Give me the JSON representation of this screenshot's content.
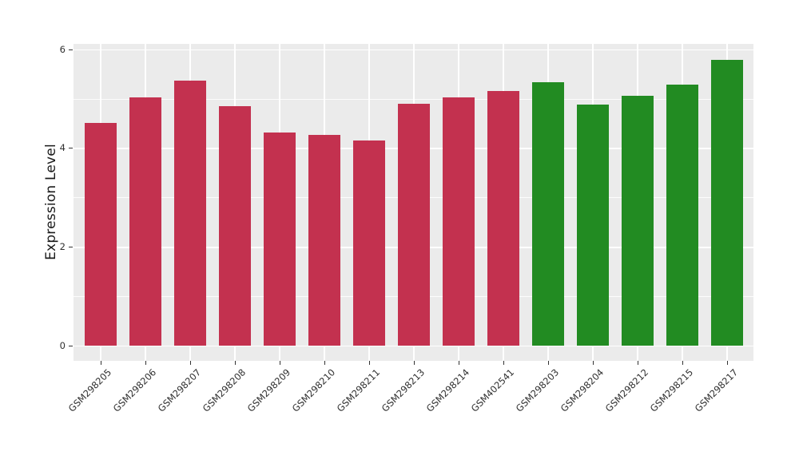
{
  "chart_data": {
    "type": "bar",
    "title": "",
    "xlabel": "",
    "ylabel": "Expression Level",
    "ylim": [
      0,
      6.1
    ],
    "yticks": [
      0,
      2,
      4,
      6
    ],
    "yticks_minor": [
      1,
      3,
      5
    ],
    "grid": "white major and minor horizontal lines, white vertical lines at bar centers, on gray panel",
    "legend_position": "none",
    "categories": [
      "GSM298205",
      "GSM298206",
      "GSM298207",
      "GSM298208",
      "GSM298209",
      "GSM298210",
      "GSM298211",
      "GSM298213",
      "GSM298214",
      "GSM402541",
      "GSM298203",
      "GSM298204",
      "GSM298212",
      "GSM298215",
      "GSM298217"
    ],
    "series": [
      {
        "name": "group-red",
        "color": "#C3314F",
        "indices": [
          0,
          1,
          2,
          3,
          4,
          5,
          6,
          7,
          8,
          9
        ]
      },
      {
        "name": "group-green",
        "color": "#228B22",
        "indices": [
          10,
          11,
          12,
          13,
          14
        ]
      }
    ],
    "values": [
      4.5,
      5.02,
      5.36,
      4.85,
      4.31,
      4.26,
      4.15,
      4.89,
      5.03,
      5.15,
      5.33,
      4.88,
      5.06,
      5.28,
      5.78
    ],
    "bar_colors": [
      "#C3314F",
      "#C3314F",
      "#C3314F",
      "#C3314F",
      "#C3314F",
      "#C3314F",
      "#C3314F",
      "#C3314F",
      "#C3314F",
      "#C3314F",
      "#228B22",
      "#228B22",
      "#228B22",
      "#228B22",
      "#228B22"
    ],
    "panel_background": "#EBEBEB",
    "grid_color": "#FFFFFF",
    "axis_text_color": "#303030",
    "axis_title_color": "#1A1A1A"
  }
}
